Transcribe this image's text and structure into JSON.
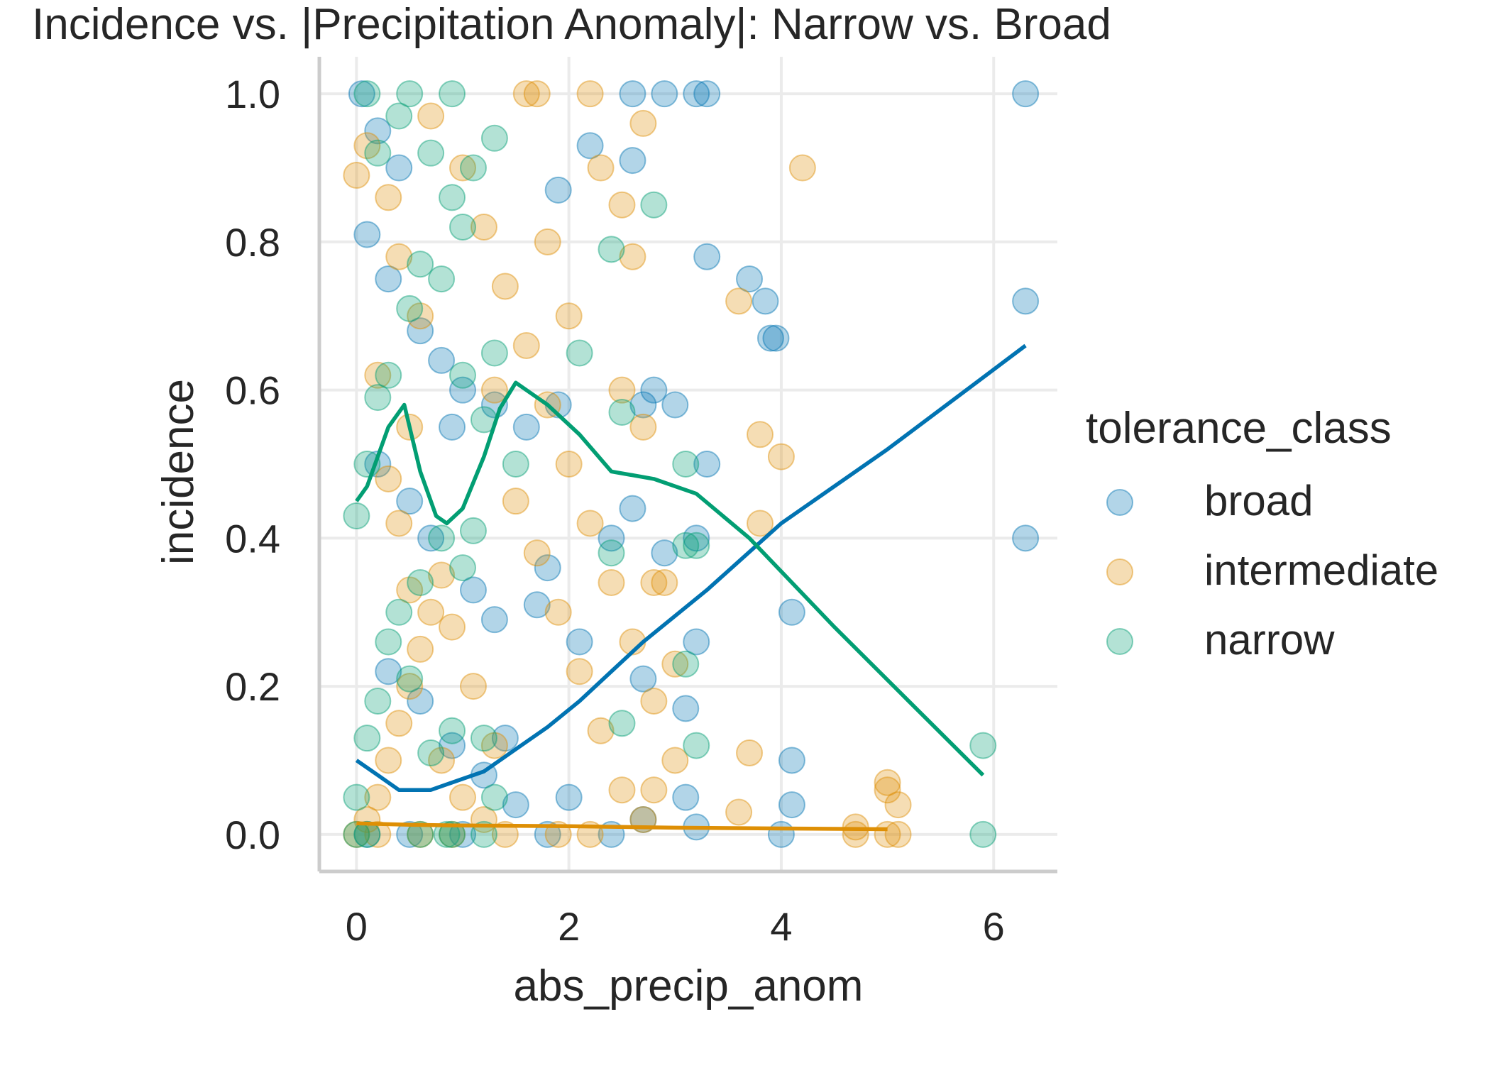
{
  "chart_data": {
    "type": "scatter",
    "title": "Incidence vs. |Precipitation Anomaly|: Narrow vs. Broad",
    "xlabel": "abs_precip_anom",
    "ylabel": "incidence",
    "xlim": [
      -0.35,
      6.6
    ],
    "ylim": [
      -0.05,
      1.05
    ],
    "xticks": [
      0,
      2,
      4,
      6
    ],
    "xtick_labels": [
      "0",
      "2",
      "4",
      "6"
    ],
    "yticks": [
      0.0,
      0.2,
      0.4,
      0.6,
      0.8,
      1.0
    ],
    "ytick_labels": [
      "0.0",
      "0.2",
      "0.4",
      "0.6",
      "0.8",
      "1.0"
    ],
    "grid": true,
    "legend": {
      "title": "tolerance_class",
      "position": "right",
      "entries": [
        "broad",
        "intermediate",
        "narrow"
      ]
    },
    "colors": {
      "broad": "#0173b2",
      "intermediate": "#de8f05",
      "narrow": "#029e73"
    },
    "series": [
      {
        "name": "broad",
        "points": [
          [
            0.05,
            1.0
          ],
          [
            0.2,
            0.95
          ],
          [
            0.4,
            0.9
          ],
          [
            0.1,
            0.81
          ],
          [
            0.3,
            0.75
          ],
          [
            0.6,
            0.68
          ],
          [
            0.8,
            0.64
          ],
          [
            1.0,
            0.6
          ],
          [
            1.3,
            0.58
          ],
          [
            1.6,
            0.55
          ],
          [
            0.2,
            0.5
          ],
          [
            0.5,
            0.45
          ],
          [
            0.7,
            0.4
          ],
          [
            1.1,
            0.33
          ],
          [
            1.3,
            0.29
          ],
          [
            1.8,
            0.36
          ],
          [
            1.7,
            0.31
          ],
          [
            2.1,
            0.26
          ],
          [
            2.4,
            0.4
          ],
          [
            2.6,
            0.44
          ],
          [
            0.3,
            0.22
          ],
          [
            0.6,
            0.18
          ],
          [
            0.9,
            0.12
          ],
          [
            1.2,
            0.08
          ],
          [
            1.5,
            0.04
          ],
          [
            2.0,
            0.05
          ],
          [
            2.7,
            0.02
          ],
          [
            3.1,
            0.05
          ],
          [
            3.2,
            0.01
          ],
          [
            0.1,
            0.0
          ],
          [
            0.5,
            0.0
          ],
          [
            1.0,
            0.0
          ],
          [
            1.8,
            0.0
          ],
          [
            2.4,
            0.0
          ],
          [
            2.6,
            1.0
          ],
          [
            2.9,
            1.0
          ],
          [
            3.2,
            1.0
          ],
          [
            3.3,
            1.0
          ],
          [
            2.8,
            0.6
          ],
          [
            3.0,
            0.58
          ],
          [
            3.3,
            0.78
          ],
          [
            3.7,
            0.75
          ],
          [
            3.85,
            0.72
          ],
          [
            3.9,
            0.67
          ],
          [
            3.95,
            0.67
          ],
          [
            3.3,
            0.5
          ],
          [
            3.2,
            0.26
          ],
          [
            3.1,
            0.17
          ],
          [
            3.2,
            0.4
          ],
          [
            4.1,
            0.3
          ],
          [
            4.1,
            0.1
          ],
          [
            4.1,
            0.04
          ],
          [
            4.0,
            0.0
          ],
          [
            6.3,
            1.0
          ],
          [
            6.3,
            0.72
          ],
          [
            6.3,
            0.4
          ],
          [
            2.2,
            0.93
          ],
          [
            2.6,
            0.91
          ],
          [
            1.9,
            0.87
          ],
          [
            2.7,
            0.58
          ],
          [
            2.9,
            0.38
          ],
          [
            2.7,
            0.21
          ],
          [
            1.9,
            0.58
          ],
          [
            1.4,
            0.13
          ],
          [
            0.9,
            0.55
          ]
        ]
      },
      {
        "name": "intermediate",
        "points": [
          [
            0.0,
            0.0
          ],
          [
            0.1,
            0.02
          ],
          [
            0.2,
            0.05
          ],
          [
            0.3,
            0.1
          ],
          [
            0.4,
            0.15
          ],
          [
            0.5,
            0.2
          ],
          [
            0.6,
            0.25
          ],
          [
            0.7,
            0.3
          ],
          [
            0.8,
            0.35
          ],
          [
            0.4,
            0.42
          ],
          [
            0.3,
            0.48
          ],
          [
            0.5,
            0.55
          ],
          [
            0.2,
            0.62
          ],
          [
            0.6,
            0.7
          ],
          [
            0.4,
            0.78
          ],
          [
            0.3,
            0.86
          ],
          [
            0.1,
            0.93
          ],
          [
            0.7,
            0.97
          ],
          [
            1.0,
            0.9
          ],
          [
            1.2,
            0.82
          ],
          [
            1.4,
            0.74
          ],
          [
            1.6,
            0.66
          ],
          [
            1.8,
            0.58
          ],
          [
            2.0,
            0.5
          ],
          [
            2.2,
            0.42
          ],
          [
            2.4,
            0.34
          ],
          [
            2.6,
            0.26
          ],
          [
            2.8,
            0.18
          ],
          [
            3.0,
            0.1
          ],
          [
            1.5,
            0.45
          ],
          [
            1.7,
            0.38
          ],
          [
            1.9,
            0.3
          ],
          [
            2.1,
            0.22
          ],
          [
            2.3,
            0.14
          ],
          [
            2.5,
            0.06
          ],
          [
            2.7,
            0.02
          ],
          [
            1.3,
            0.12
          ],
          [
            1.1,
            0.2
          ],
          [
            0.9,
            0.28
          ],
          [
            0.8,
            0.1
          ],
          [
            1.0,
            0.05
          ],
          [
            1.2,
            0.02
          ],
          [
            1.6,
            1.0
          ],
          [
            1.7,
            1.0
          ],
          [
            2.2,
            1.0
          ],
          [
            2.7,
            0.96
          ],
          [
            2.3,
            0.9
          ],
          [
            2.5,
            0.85
          ],
          [
            2.6,
            0.78
          ],
          [
            2.5,
            0.6
          ],
          [
            2.7,
            0.55
          ],
          [
            2.8,
            0.34
          ],
          [
            2.9,
            0.34
          ],
          [
            3.0,
            0.23
          ],
          [
            2.8,
            0.06
          ],
          [
            3.6,
            0.72
          ],
          [
            3.8,
            0.54
          ],
          [
            4.0,
            0.51
          ],
          [
            3.8,
            0.42
          ],
          [
            4.2,
            0.9
          ],
          [
            3.7,
            0.11
          ],
          [
            3.6,
            0.03
          ],
          [
            4.7,
            0.0
          ],
          [
            4.7,
            0.01
          ],
          [
            5.0,
            0.0
          ],
          [
            5.1,
            0.0
          ],
          [
            5.0,
            0.07
          ],
          [
            5.0,
            0.06
          ],
          [
            5.1,
            0.04
          ],
          [
            1.8,
            0.8
          ],
          [
            2.0,
            0.7
          ],
          [
            0.2,
            0.0
          ],
          [
            0.6,
            0.0
          ],
          [
            0.9,
            0.0
          ],
          [
            1.4,
            0.0
          ],
          [
            1.9,
            0.0
          ],
          [
            2.2,
            0.0
          ],
          [
            0.0,
            0.89
          ],
          [
            0.5,
            0.33
          ],
          [
            1.3,
            0.6
          ]
        ]
      },
      {
        "name": "narrow",
        "points": [
          [
            0.0,
            0.0
          ],
          [
            0.1,
            0.0
          ],
          [
            0.6,
            0.0
          ],
          [
            0.85,
            0.0
          ],
          [
            0.9,
            0.0
          ],
          [
            1.2,
            0.0
          ],
          [
            0.0,
            0.05
          ],
          [
            0.1,
            0.13
          ],
          [
            0.2,
            0.18
          ],
          [
            0.3,
            0.26
          ],
          [
            0.4,
            0.3
          ],
          [
            0.6,
            0.34
          ],
          [
            0.8,
            0.4
          ],
          [
            1.0,
            0.36
          ],
          [
            1.1,
            0.41
          ],
          [
            1.2,
            0.13
          ],
          [
            1.3,
            0.05
          ],
          [
            0.9,
            0.14
          ],
          [
            0.7,
            0.11
          ],
          [
            0.5,
            0.21
          ],
          [
            0.0,
            0.43
          ],
          [
            0.1,
            0.5
          ],
          [
            0.2,
            0.59
          ],
          [
            0.3,
            0.62
          ],
          [
            0.5,
            0.71
          ],
          [
            0.6,
            0.77
          ],
          [
            0.8,
            0.75
          ],
          [
            1.0,
            0.82
          ],
          [
            0.9,
            0.86
          ],
          [
            1.1,
            0.9
          ],
          [
            1.3,
            0.94
          ],
          [
            0.2,
            0.92
          ],
          [
            0.1,
            1.0
          ],
          [
            0.5,
            1.0
          ],
          [
            0.9,
            1.0
          ],
          [
            1.0,
            0.62
          ],
          [
            1.3,
            0.65
          ],
          [
            1.5,
            0.5
          ],
          [
            1.2,
            0.56
          ],
          [
            2.1,
            0.65
          ],
          [
            2.8,
            0.85
          ],
          [
            2.4,
            0.79
          ],
          [
            2.5,
            0.57
          ],
          [
            2.4,
            0.38
          ],
          [
            2.5,
            0.15
          ],
          [
            3.1,
            0.39
          ],
          [
            3.2,
            0.39
          ],
          [
            3.1,
            0.5
          ],
          [
            3.1,
            0.23
          ],
          [
            3.2,
            0.12
          ],
          [
            5.9,
            0.12
          ],
          [
            5.9,
            0.0
          ],
          [
            0.4,
            0.97
          ],
          [
            0.7,
            0.92
          ]
        ]
      }
    ],
    "trend_lines": [
      {
        "name": "broad",
        "points": [
          [
            0.0,
            0.1
          ],
          [
            0.2,
            0.08
          ],
          [
            0.4,
            0.06
          ],
          [
            0.7,
            0.06
          ],
          [
            1.0,
            0.075
          ],
          [
            1.2,
            0.085
          ],
          [
            1.5,
            0.115
          ],
          [
            1.8,
            0.145
          ],
          [
            2.1,
            0.18
          ],
          [
            2.4,
            0.22
          ],
          [
            2.7,
            0.26
          ],
          [
            3.3,
            0.33
          ],
          [
            4.0,
            0.42
          ],
          [
            5.0,
            0.52
          ],
          [
            6.3,
            0.66
          ]
        ]
      },
      {
        "name": "intermediate",
        "points": [
          [
            0.0,
            0.015
          ],
          [
            0.5,
            0.013
          ],
          [
            1.0,
            0.012
          ],
          [
            2.0,
            0.011
          ],
          [
            3.0,
            0.009
          ],
          [
            4.0,
            0.008
          ],
          [
            5.0,
            0.007
          ]
        ]
      },
      {
        "name": "narrow",
        "points": [
          [
            0.0,
            0.45
          ],
          [
            0.1,
            0.47
          ],
          [
            0.2,
            0.51
          ],
          [
            0.3,
            0.55
          ],
          [
            0.45,
            0.58
          ],
          [
            0.6,
            0.49
          ],
          [
            0.75,
            0.43
          ],
          [
            0.85,
            0.42
          ],
          [
            1.0,
            0.44
          ],
          [
            1.2,
            0.51
          ],
          [
            1.35,
            0.575
          ],
          [
            1.5,
            0.61
          ],
          [
            1.8,
            0.58
          ],
          [
            2.1,
            0.54
          ],
          [
            2.4,
            0.49
          ],
          [
            2.8,
            0.48
          ],
          [
            3.2,
            0.46
          ],
          [
            3.7,
            0.4
          ],
          [
            4.5,
            0.28
          ],
          [
            5.2,
            0.18
          ],
          [
            5.9,
            0.08
          ]
        ]
      }
    ]
  }
}
